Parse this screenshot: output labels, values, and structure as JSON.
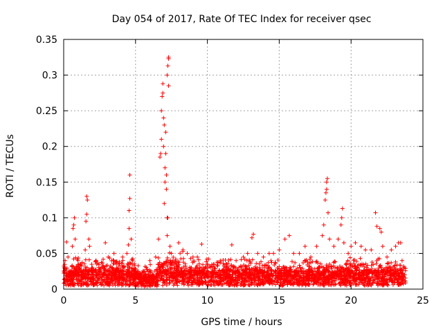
{
  "chart_data": {
    "type": "scatter",
    "title": "Day 054 of 2017, Rate Of TEC Index for receiver qsec",
    "xlabel": "GPS time / hours",
    "ylabel": "ROTI / TECUs",
    "xlim": [
      0,
      25
    ],
    "ylim": [
      0,
      0.35
    ],
    "xticks": [
      "0",
      "5",
      "10",
      "15",
      "20",
      "25"
    ],
    "yticks": [
      "0",
      "0.05",
      "0.1",
      "0.15",
      "0.2",
      "0.25",
      "0.3",
      "0.35"
    ],
    "grid": true,
    "legend": "none",
    "marker": "+",
    "color": "#ff0000",
    "series": [
      {
        "points": [
          [
            0.05,
            0.03
          ],
          [
            0.1,
            0.04
          ],
          [
            0.2,
            0.066
          ],
          [
            0.3,
            0.045
          ],
          [
            0.6,
            0.06
          ],
          [
            0.65,
            0.085
          ],
          [
            0.7,
            0.09
          ],
          [
            0.75,
            0.1
          ],
          [
            0.8,
            0.07
          ],
          [
            1.0,
            0.04
          ],
          [
            1.2,
            0.035
          ],
          [
            1.5,
            0.055
          ],
          [
            1.55,
            0.095
          ],
          [
            1.6,
            0.105
          ],
          [
            1.6,
            0.13
          ],
          [
            1.65,
            0.125
          ],
          [
            1.75,
            0.07
          ],
          [
            1.8,
            0.06
          ],
          [
            2.0,
            0.03
          ],
          [
            2.3,
            0.035
          ],
          [
            2.6,
            0.03
          ],
          [
            2.9,
            0.065
          ],
          [
            3.1,
            0.045
          ],
          [
            3.5,
            0.05
          ],
          [
            3.8,
            0.035
          ],
          [
            4.1,
            0.045
          ],
          [
            4.4,
            0.05
          ],
          [
            4.5,
            0.062
          ],
          [
            4.55,
            0.085
          ],
          [
            4.55,
            0.11
          ],
          [
            4.6,
            0.127
          ],
          [
            4.6,
            0.16
          ],
          [
            4.7,
            0.07
          ],
          [
            4.8,
            0.04
          ],
          [
            5.2,
            0.025
          ],
          [
            5.6,
            0.025
          ],
          [
            6.0,
            0.04
          ],
          [
            6.4,
            0.045
          ],
          [
            6.6,
            0.07
          ],
          [
            6.7,
            0.185
          ],
          [
            6.75,
            0.19
          ],
          [
            6.8,
            0.21
          ],
          [
            6.8,
            0.25
          ],
          [
            6.85,
            0.27
          ],
          [
            6.9,
            0.275
          ],
          [
            6.9,
            0.288
          ],
          [
            6.95,
            0.24
          ],
          [
            6.95,
            0.2
          ],
          [
            7.0,
            0.23
          ],
          [
            7.0,
            0.12
          ],
          [
            7.05,
            0.17
          ],
          [
            7.05,
            0.15
          ],
          [
            7.1,
            0.22
          ],
          [
            7.1,
            0.19
          ],
          [
            7.15,
            0.16
          ],
          [
            7.15,
            0.14
          ],
          [
            7.2,
            0.075
          ],
          [
            7.2,
            0.1
          ],
          [
            7.25,
            0.1
          ],
          [
            7.2,
            0.3
          ],
          [
            7.25,
            0.313
          ],
          [
            7.3,
            0.323
          ],
          [
            7.3,
            0.325
          ],
          [
            7.3,
            0.285
          ],
          [
            7.4,
            0.06
          ],
          [
            7.5,
            0.05
          ],
          [
            7.6,
            0.04
          ],
          [
            8.0,
            0.065
          ],
          [
            8.3,
            0.055
          ],
          [
            8.6,
            0.05
          ],
          [
            9.0,
            0.045
          ],
          [
            9.3,
            0.045
          ],
          [
            9.6,
            0.063
          ],
          [
            10.0,
            0.035
          ],
          [
            10.5,
            0.03
          ],
          [
            10.9,
            0.04
          ],
          [
            11.3,
            0.035
          ],
          [
            11.7,
            0.062
          ],
          [
            12.0,
            0.04
          ],
          [
            12.5,
            0.045
          ],
          [
            12.8,
            0.05
          ],
          [
            13.1,
            0.072
          ],
          [
            13.2,
            0.077
          ],
          [
            13.5,
            0.05
          ],
          [
            13.9,
            0.045
          ],
          [
            14.3,
            0.05
          ],
          [
            14.6,
            0.05
          ],
          [
            15.0,
            0.055
          ],
          [
            15.4,
            0.07
          ],
          [
            15.7,
            0.075
          ],
          [
            16.0,
            0.05
          ],
          [
            16.4,
            0.05
          ],
          [
            16.8,
            0.06
          ],
          [
            17.2,
            0.045
          ],
          [
            17.6,
            0.06
          ],
          [
            18.0,
            0.075
          ],
          [
            18.1,
            0.09
          ],
          [
            18.2,
            0.125
          ],
          [
            18.25,
            0.135
          ],
          [
            18.3,
            0.14
          ],
          [
            18.3,
            0.15
          ],
          [
            18.35,
            0.155
          ],
          [
            18.4,
            0.107
          ],
          [
            18.5,
            0.07
          ],
          [
            18.8,
            0.06
          ],
          [
            19.1,
            0.07
          ],
          [
            19.3,
            0.09
          ],
          [
            19.35,
            0.1
          ],
          [
            19.4,
            0.113
          ],
          [
            19.5,
            0.065
          ],
          [
            19.8,
            0.05
          ],
          [
            20.0,
            0.06
          ],
          [
            20.3,
            0.065
          ],
          [
            20.7,
            0.06
          ],
          [
            21.0,
            0.055
          ],
          [
            21.4,
            0.055
          ],
          [
            21.7,
            0.107
          ],
          [
            21.8,
            0.088
          ],
          [
            22.0,
            0.085
          ],
          [
            22.1,
            0.08
          ],
          [
            22.2,
            0.06
          ],
          [
            22.5,
            0.045
          ],
          [
            22.8,
            0.055
          ],
          [
            23.1,
            0.06
          ],
          [
            23.3,
            0.065
          ],
          [
            23.45,
            0.065
          ],
          [
            23.55,
            0.04
          ],
          [
            23.7,
            0.03
          ]
        ]
      }
    ]
  }
}
